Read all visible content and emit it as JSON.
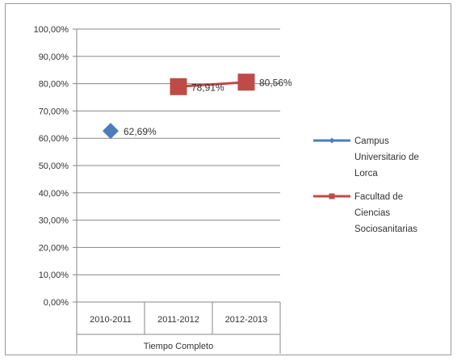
{
  "chart_data": {
    "type": "line",
    "title": "",
    "xlabel": "Tiempo Completo",
    "ylabel": "",
    "categories": [
      "2010-2011",
      "2011-2012",
      "2012-2013"
    ],
    "y_ticks": [
      "0,00%",
      "10,00%",
      "20,00%",
      "30,00%",
      "40,00%",
      "50,00%",
      "60,00%",
      "70,00%",
      "80,00%",
      "90,00%",
      "100,00%"
    ],
    "ylim": [
      0,
      100
    ],
    "grid": true,
    "legend_position": "right",
    "series": [
      {
        "name": "Campus Universitario de Lorca",
        "legend_lines": [
          "Campus",
          "Universitario de",
          "Lorca"
        ],
        "color": "#4a7ebb",
        "marker": "diamond",
        "values": [
          62.69,
          null,
          null
        ],
        "labels": [
          "62,69%",
          null,
          null
        ]
      },
      {
        "name": "Facultad de Ciencias Sociosanitarias",
        "legend_lines": [
          "Facultad de",
          "Ciencias",
          "Sociosanitarias"
        ],
        "color": "#be4b48",
        "marker": "square",
        "values": [
          null,
          78.91,
          80.56
        ],
        "labels": [
          null,
          "78,91%",
          "80,56%"
        ]
      }
    ]
  }
}
